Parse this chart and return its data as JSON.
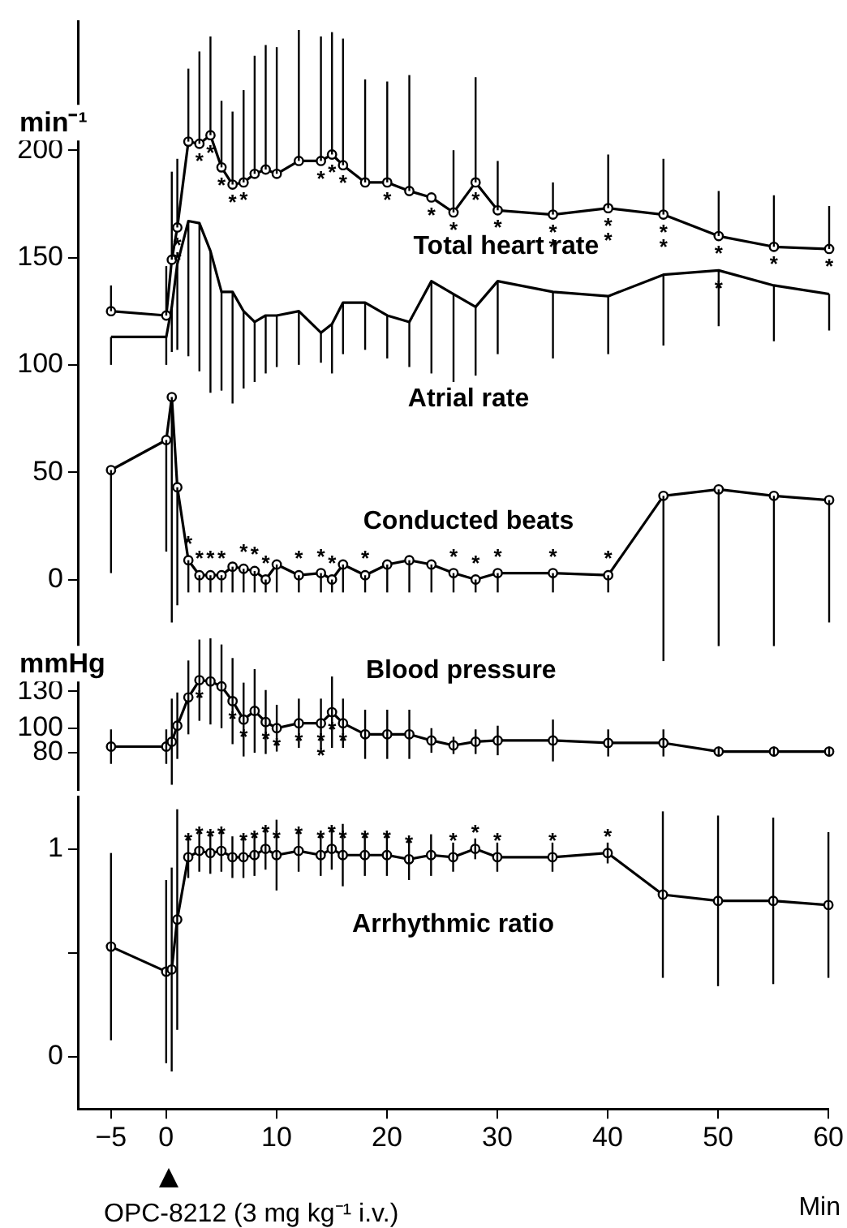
{
  "chart_data": [
    {
      "type": "line",
      "ylabel": "min⁻¹",
      "tick_labels": "y",
      "x": [
        -5,
        0,
        0.5,
        1,
        2,
        3,
        4,
        5,
        6,
        7,
        8,
        9,
        10,
        12,
        14,
        15,
        16,
        18,
        20,
        22,
        24,
        26,
        28,
        30,
        35,
        40,
        45,
        50,
        55,
        60
      ],
      "xlim": [
        -8,
        60
      ],
      "xticks": [
        -5,
        0,
        10,
        20,
        30,
        40,
        50,
        60
      ],
      "ylim": [
        -45,
        260
      ],
      "yticks": [
        0,
        50,
        100,
        150,
        200
      ],
      "series": [
        {
          "name": "Total heart rate",
          "color": "#000000",
          "marker": "circle",
          "values": [
            125,
            123,
            149,
            164,
            204,
            203,
            207,
            192,
            184,
            185,
            189,
            191,
            189,
            195,
            195,
            198,
            193,
            185,
            185,
            181,
            178,
            171,
            185,
            172,
            170,
            173,
            170,
            160,
            155,
            154
          ],
          "errors": [
            [
              125,
              137
            ],
            [
              123,
              146
            ],
            [
              149,
              190
            ],
            [
              164,
              196
            ],
            [
              204,
              238
            ],
            [
              203,
              246
            ],
            [
              207,
              253
            ],
            [
              192,
              223
            ],
            [
              184,
              218
            ],
            [
              185,
              228
            ],
            [
              189,
              244
            ],
            [
              191,
              249
            ],
            [
              189,
              248
            ],
            [
              195,
              256
            ],
            [
              195,
              253
            ],
            [
              198,
              255
            ],
            [
              193,
              252
            ],
            [
              185,
              233
            ],
            [
              185,
              232
            ],
            [
              181,
              235
            ],
            null,
            [
              171,
              200
            ],
            [
              185,
              234
            ],
            [
              172,
              195
            ],
            [
              170,
              185
            ],
            [
              173,
              198
            ],
            [
              170,
              196
            ],
            [
              160,
              181
            ],
            [
              155,
              179
            ],
            [
              154,
              174
            ]
          ],
          "value_labels": [
            null,
            null,
            null,
            "**",
            null,
            "*",
            "*",
            "*",
            "*",
            "*",
            null,
            null,
            null,
            null,
            "*",
            "*",
            "*",
            null,
            "*",
            null,
            "*",
            "*",
            "*",
            "*",
            "**",
            "**",
            "**",
            "*",
            "*",
            "*"
          ]
        },
        {
          "name": "Atrial rate",
          "color": "#000000",
          "marker": "none",
          "values": [
            113,
            113,
            127,
            147,
            167,
            166,
            153,
            134,
            134,
            125,
            120,
            123,
            123,
            125,
            115,
            119,
            129,
            129,
            123,
            120,
            139,
            133,
            127,
            139,
            134,
            132,
            142,
            144,
            137,
            133
          ],
          "errors": [
            [
              100,
              113
            ],
            [
              100,
              113
            ],
            [
              106,
              127
            ],
            [
              107,
              147
            ],
            [
              104,
              167
            ],
            [
              97,
              166
            ],
            [
              87,
              153
            ],
            [
              88,
              134
            ],
            [
              82,
              134
            ],
            [
              89,
              125
            ],
            [
              92,
              120
            ],
            [
              96,
              123
            ],
            [
              99,
              123
            ],
            [
              100,
              125
            ],
            [
              101,
              115
            ],
            [
              96,
              119
            ],
            [
              105,
              129
            ],
            [
              107,
              129
            ],
            [
              103,
              123
            ],
            [
              99,
              120
            ],
            [
              96,
              139
            ],
            [
              92,
              133
            ],
            [
              95,
              127
            ],
            [
              105,
              139
            ],
            [
              103,
              134
            ],
            [
              105,
              132
            ],
            [
              109,
              142
            ],
            [
              118,
              144
            ],
            [
              111,
              137
            ],
            [
              116,
              133
            ]
          ],
          "value_labels": [
            null,
            null,
            null,
            null,
            null,
            null,
            null,
            null,
            null,
            null,
            null,
            null,
            null,
            null,
            null,
            null,
            null,
            null,
            null,
            null,
            null,
            null,
            null,
            null,
            null,
            null,
            null,
            "*",
            null,
            null
          ]
        },
        {
          "name": "Conducted beats",
          "color": "#000000",
          "marker": "circle",
          "values": [
            51,
            65,
            85,
            43,
            9,
            2,
            2,
            2,
            6,
            5,
            4,
            0,
            7,
            2,
            3,
            0,
            7,
            2,
            7,
            9,
            7,
            3,
            0,
            3,
            3,
            2,
            39,
            42,
            39,
            37
          ],
          "errors": [
            [
              3,
              51
            ],
            [
              13,
              65
            ],
            [
              -20,
              85
            ],
            [
              -12,
              43
            ],
            [
              -6,
              9
            ],
            [
              -6,
              2
            ],
            [
              -6,
              2
            ],
            [
              -6,
              2
            ],
            [
              -6,
              6
            ],
            [
              -6,
              5
            ],
            [
              -6,
              4
            ],
            [
              -6,
              0
            ],
            [
              -6,
              7
            ],
            [
              -6,
              2
            ],
            [
              -6,
              3
            ],
            [
              -6,
              0
            ],
            [
              -6,
              7
            ],
            [
              -6,
              2
            ],
            [
              -6,
              7
            ],
            [
              -6,
              9
            ],
            [
              -6,
              7
            ],
            [
              -6,
              3
            ],
            [
              -6,
              0
            ],
            [
              -6,
              3
            ],
            [
              -6,
              3
            ],
            [
              -6,
              2
            ],
            [
              -38,
              39
            ],
            [
              -31,
              42
            ],
            [
              -31,
              39
            ],
            [
              -20,
              37
            ]
          ],
          "value_labels": [
            null,
            null,
            null,
            null,
            "*",
            "*",
            "*",
            "*",
            null,
            "*",
            "*",
            "*",
            null,
            "*",
            "*",
            "*",
            null,
            "*",
            null,
            null,
            null,
            "*",
            "*",
            "*",
            "*",
            "*",
            null,
            null,
            null,
            null
          ]
        }
      ]
    },
    {
      "type": "line",
      "ylabel": "mmHg",
      "tick_labels": "y",
      "x": [
        -5,
        0,
        0.5,
        1,
        2,
        3,
        4,
        5,
        6,
        7,
        8,
        9,
        10,
        12,
        14,
        15,
        16,
        18,
        20,
        22,
        24,
        26,
        28,
        30,
        35,
        40,
        45,
        50,
        55,
        60
      ],
      "xlim": [
        -8,
        60
      ],
      "xticks": [
        -5,
        0,
        10,
        20,
        30,
        40,
        50,
        60
      ],
      "ylim": [
        50,
        180
      ],
      "yticks": [
        80,
        100,
        130
      ],
      "series": [
        {
          "name": "Blood pressure",
          "color": "#000000",
          "marker": "circle",
          "values": [
            85,
            85,
            89,
            102,
            125,
            139,
            138,
            134,
            122,
            107,
            114,
            105,
            100,
            104,
            104,
            113,
            104,
            95,
            95,
            95,
            90,
            86,
            89,
            90,
            90,
            88,
            88,
            81,
            81,
            81
          ],
          "errors": [
            14,
            14,
            35,
            27,
            30,
            33,
            35,
            34,
            35,
            30,
            34,
            26,
            19,
            20,
            20,
            29,
            20,
            20,
            20,
            20,
            10,
            7,
            10,
            12,
            17,
            11,
            11,
            4,
            4,
            4
          ],
          "value_labels": [
            null,
            null,
            null,
            null,
            null,
            "*",
            null,
            null,
            "*",
            "*",
            null,
            "*",
            "*",
            "*",
            "**",
            "*",
            "*",
            null,
            null,
            null,
            null,
            null,
            null,
            null,
            null,
            null,
            null,
            null,
            null,
            null
          ]
        }
      ]
    },
    {
      "type": "line",
      "xlabel": "Min",
      "annotations": [
        "OPC-8212 (3 mg kg⁻¹ i.v.)"
      ],
      "x": [
        -5,
        0,
        0.5,
        1,
        2,
        3,
        4,
        5,
        6,
        7,
        8,
        9,
        10,
        12,
        14,
        15,
        16,
        18,
        20,
        22,
        24,
        26,
        28,
        30,
        35,
        40,
        45,
        50,
        55,
        60
      ],
      "xlim": [
        -8,
        60
      ],
      "xticks": [
        -5,
        0,
        10,
        20,
        30,
        40,
        50,
        60
      ],
      "ylim": [
        -0.25,
        1.25
      ],
      "yticks": [
        0,
        {
          "value": 0.5,
          "label": null
        },
        1
      ],
      "series": [
        {
          "name": "Arrhythmic ratio",
          "color": "#000000",
          "marker": "circle",
          "values": [
            0.53,
            0.41,
            0.42,
            0.66,
            0.96,
            0.99,
            0.98,
            0.99,
            0.96,
            0.96,
            0.97,
            1.0,
            0.97,
            0.99,
            0.97,
            1.0,
            0.97,
            0.97,
            0.97,
            0.95,
            0.97,
            0.96,
            1.0,
            0.96,
            0.96,
            0.98,
            0.78,
            0.75,
            0.75,
            0.73
          ],
          "errors": [
            0.45,
            0.44,
            0.49,
            0.53,
            0.1,
            0.1,
            0.1,
            0.1,
            0.1,
            0.1,
            0.1,
            0.1,
            0.17,
            0.1,
            0.1,
            0.1,
            0.15,
            0.1,
            0.1,
            0.1,
            0.1,
            0.07,
            0.05,
            0.07,
            0.07,
            0.05,
            0.4,
            0.41,
            0.4,
            0.35
          ],
          "value_labels": [
            null,
            null,
            null,
            null,
            "*",
            "*",
            "*",
            "*",
            null,
            "*",
            "*",
            "*",
            "*",
            "*",
            "*",
            "*",
            "*",
            "*",
            "*",
            "*",
            null,
            "*",
            "*",
            "*",
            "*",
            "*",
            null,
            null,
            null,
            null
          ]
        }
      ]
    }
  ]
}
